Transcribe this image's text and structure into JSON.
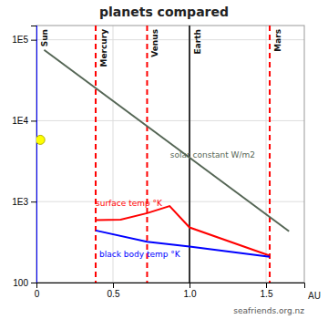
{
  "chart_data": {
    "type": "line",
    "title": "planets compared",
    "x_label": "AU",
    "log": "y",
    "grid": true,
    "xlim": [
      0,
      1.75
    ],
    "xticks": [
      0,
      0.5,
      {
        "value": 1.0,
        "label": "1.0"
      },
      1.5
    ],
    "ylim": [
      100,
      150000
    ],
    "yticks": [
      100,
      {
        "value": 1000,
        "label": "1E3"
      },
      {
        "value": 10000,
        "label": "1E4"
      },
      {
        "value": 100000,
        "label": "1E5"
      }
    ],
    "series": [
      {
        "name": "solar constant W/m2",
        "color": "#556655",
        "line_style": "solid",
        "x": [
          0.05,
          1.65
        ],
        "values": [
          75000,
          430
        ]
      },
      {
        "name": "surface temp °K",
        "color": "red",
        "line_style": "solid",
        "x": [
          0.387,
          0.55,
          0.723,
          0.87,
          1.0,
          1.524
        ],
        "values": [
          590,
          600,
          720,
          880,
          480,
          215
        ]
      },
      {
        "name": "black body temp °K",
        "color": "blue",
        "line_style": "solid",
        "x": [
          0.387,
          0.723,
          1.0,
          1.524
        ],
        "values": [
          440,
          320,
          278,
          208
        ]
      },
      {
        "type": "scatter",
        "marker": "circle",
        "color": "yellow",
        "x": [
          0.025
        ],
        "values": [
          5800
        ]
      }
    ],
    "vertical_lines": [
      {
        "name": "Sun",
        "x": 0.0,
        "color": "blue",
        "line_style": "solid"
      },
      {
        "name": "Mercury",
        "x": 0.387,
        "color": "red",
        "line_style": "dashed"
      },
      {
        "name": "Venus",
        "x": 0.723,
        "color": "red",
        "line_style": "dashed"
      },
      {
        "name": "Earth",
        "x": 1.0,
        "color": "#333333",
        "line_style": "solid"
      },
      {
        "name": "Mars",
        "x": 1.524,
        "color": "red",
        "line_style": "dashed"
      }
    ],
    "annotations": [
      "seafriends.org.nz"
    ]
  }
}
